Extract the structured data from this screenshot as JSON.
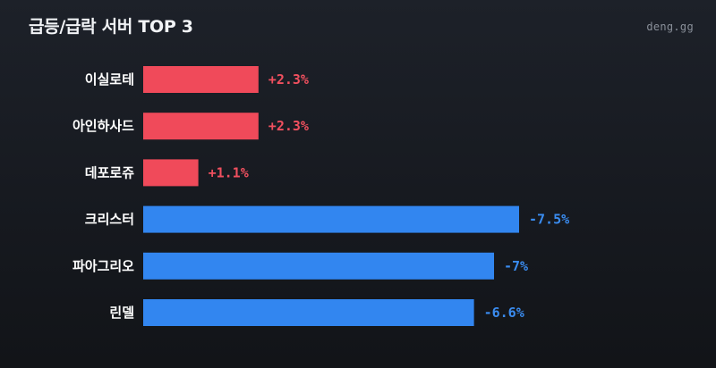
{
  "header": {
    "title": "급등/급락 서버 TOP 3",
    "brand": "deng.gg"
  },
  "colors": {
    "background": "#1a1d23",
    "positive": "#f04a5a",
    "negative": "#3286f0",
    "positive_text": "#f0505f",
    "negative_text": "#3a8cf0",
    "label": "#ffffff"
  },
  "chart_data": {
    "type": "bar",
    "orientation": "horizontal",
    "title": "급등/급락 서버 TOP 3",
    "xlabel": "",
    "ylabel": "",
    "grid": false,
    "legend": "none",
    "categories": [
      "이실로테",
      "아인하사드",
      "데포로쥬",
      "크리스터",
      "파아그리오",
      "린델"
    ],
    "values": [
      2.3,
      2.3,
      1.1,
      -7.5,
      -7,
      -6.6
    ],
    "value_labels": [
      "+2.3%",
      "+2.3%",
      "+1.1%",
      "-7.5%",
      "-7%",
      "-6.6%"
    ],
    "scale": "absolute magnitude",
    "xlim": [
      0,
      7.5
    ]
  }
}
